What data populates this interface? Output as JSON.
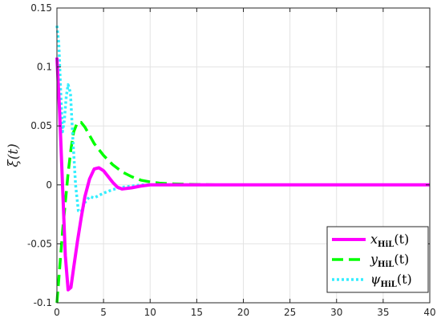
{
  "chart_data": {
    "type": "line",
    "ylabel": "ξ(t)",
    "xlabel": "",
    "xlim": [
      0,
      40
    ],
    "ylim": [
      -0.1,
      0.15
    ],
    "x_ticks": [
      "0",
      "5",
      "10",
      "15",
      "20",
      "25",
      "30",
      "35",
      "40"
    ],
    "y_ticks": [
      "-0.1",
      "-0.05",
      "0",
      "0.05",
      "0.1",
      "0.15"
    ],
    "grid": true,
    "legend_position": "bottom-right",
    "series": [
      {
        "name": "x_HiL(t)",
        "legend_main": "x",
        "legend_sub": "HiL",
        "legend_tail": "(t)",
        "color": "#ff00ff",
        "style": "solid",
        "x": [
          0,
          0.3,
          0.6,
          0.9,
          1.2,
          1.5,
          1.8,
          2.2,
          2.6,
          3.0,
          3.5,
          4.0,
          4.5,
          5.0,
          5.5,
          6.0,
          6.5,
          7.0,
          8.0,
          9.0,
          10.0,
          12.0,
          15.0,
          20.0,
          40.0
        ],
        "y": [
          0.108,
          0.06,
          0.0,
          -0.06,
          -0.089,
          -0.087,
          -0.07,
          -0.048,
          -0.028,
          -0.01,
          0.005,
          0.0135,
          0.0145,
          0.012,
          0.007,
          0.002,
          -0.002,
          -0.0035,
          -0.0025,
          -0.001,
          0.0,
          0.0,
          0.0,
          0.0,
          0.0
        ]
      },
      {
        "name": "y_HiL(t)",
        "legend_main": "y",
        "legend_sub": "HiL",
        "legend_tail": "(t)",
        "color": "#00ff00",
        "style": "dashed",
        "x": [
          0,
          0.3,
          0.6,
          0.9,
          1.2,
          1.5,
          1.8,
          2.2,
          2.6,
          3.0,
          3.5,
          4.0,
          5.0,
          6.0,
          7.0,
          8.0,
          9.0,
          10.0,
          11.0,
          12.0,
          14.0,
          17.0,
          20.0,
          40.0
        ],
        "y": [
          -0.1,
          -0.07,
          -0.04,
          -0.015,
          0.01,
          0.03,
          0.045,
          0.053,
          0.053,
          0.049,
          0.042,
          0.035,
          0.025,
          0.017,
          0.011,
          0.007,
          0.004,
          0.0025,
          0.0015,
          0.001,
          0.0005,
          0.0,
          0.0,
          0.0
        ]
      },
      {
        "name": "ψ_HiL(t)",
        "legend_main": "ψ",
        "legend_sub": "HiL",
        "legend_tail": "(t)",
        "color": "#33eeff",
        "style": "dotted",
        "x": [
          0,
          0.2,
          0.4,
          0.6,
          0.8,
          1.0,
          1.2,
          1.45,
          1.7,
          2.0,
          2.3,
          2.6,
          3.0,
          3.5,
          4.0,
          4.5,
          5.0,
          6.0,
          7.0,
          8.0,
          9.0,
          10.0,
          12.0,
          15.0,
          40.0
        ],
        "y": [
          0.135,
          0.12,
          0.08,
          0.045,
          0.055,
          0.075,
          0.085,
          0.078,
          0.04,
          0.0,
          -0.022,
          -0.023,
          -0.015,
          -0.01,
          -0.011,
          -0.009,
          -0.007,
          -0.004,
          -0.002,
          -0.001,
          0.0,
          0.0,
          0.0,
          0.0,
          0.0
        ]
      }
    ]
  }
}
